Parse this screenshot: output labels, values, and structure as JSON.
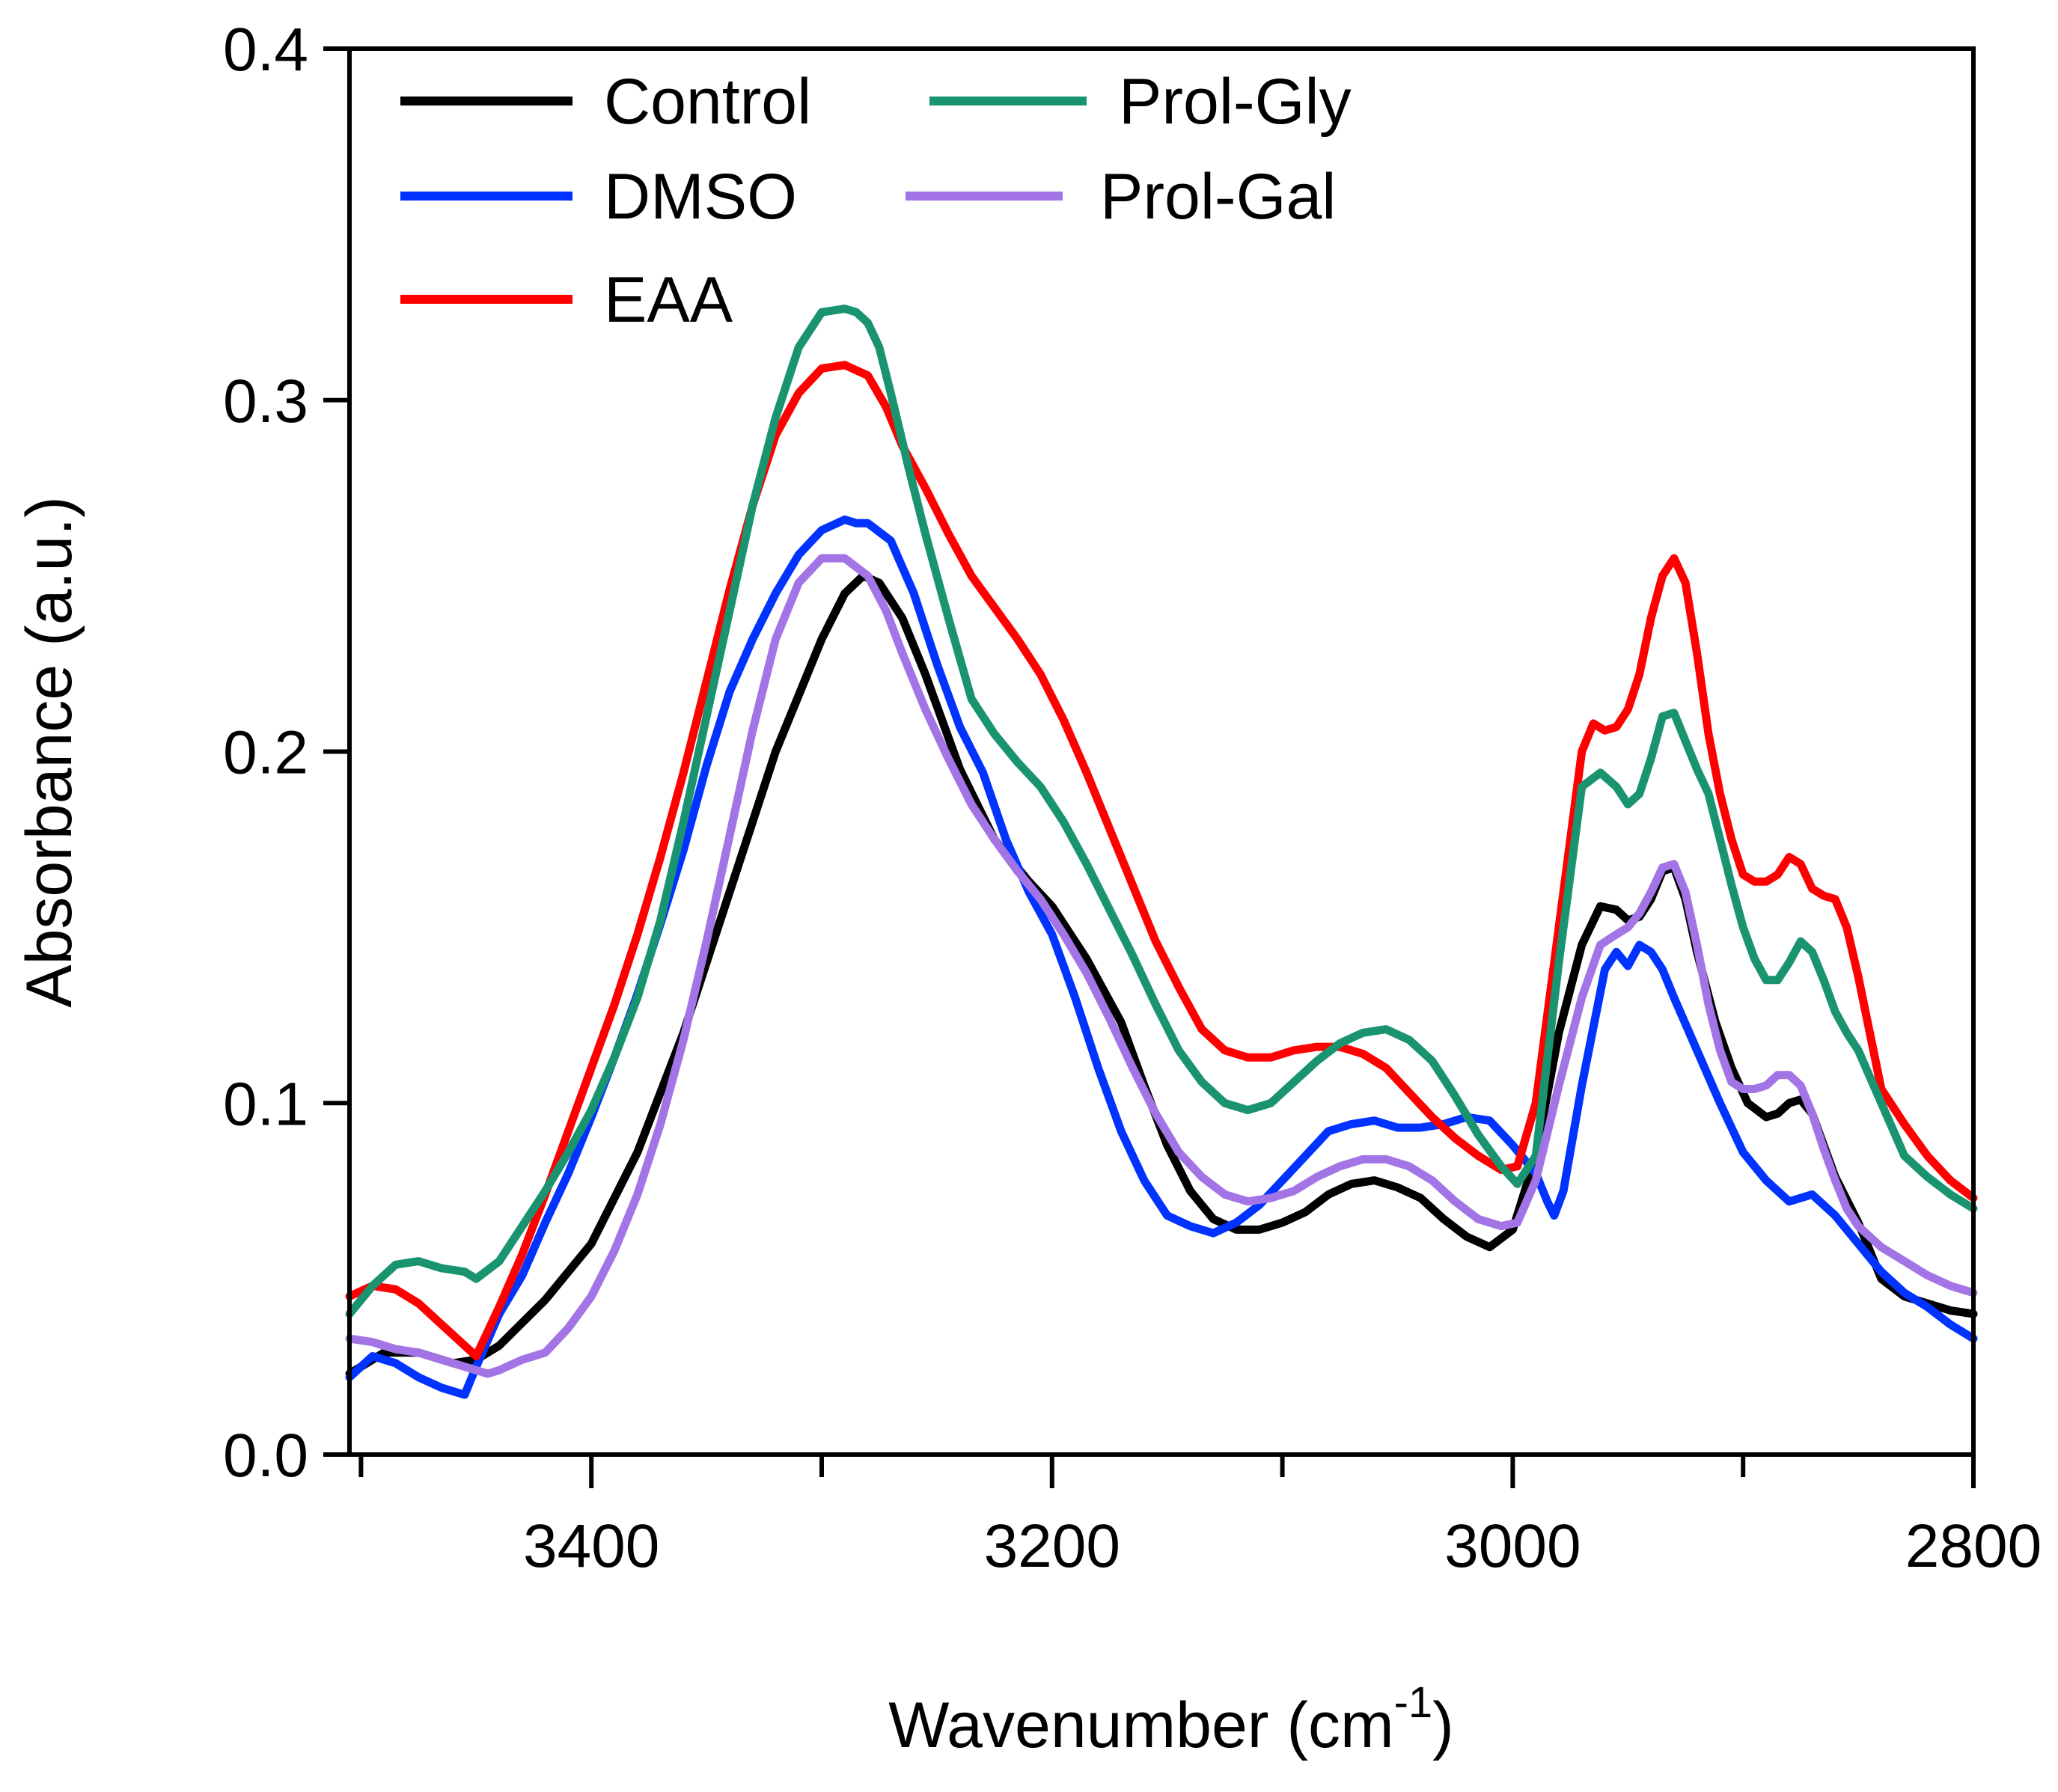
{
  "chart_data": {
    "type": "line",
    "title": "",
    "xlabel": "Wavenumber (cm",
    "xlabel_superscript": "-1",
    "xlabel_suffix": ")",
    "ylabel": "Absorbance (a.u.)",
    "xlim": [
      3505,
      2800
    ],
    "ylim": [
      0.0,
      0.4
    ],
    "x_axis_reversed": true,
    "grid": false,
    "legend_position": "top-left",
    "x_ticks": [
      3400,
      3200,
      3000,
      2800
    ],
    "x_tick_labels": [
      "3400",
      "3200",
      "3000",
      "2800"
    ],
    "x_minor_ticks": [
      3500,
      3300,
      3100,
      2900
    ],
    "y_ticks": [
      0.0,
      0.1,
      0.2,
      0.3,
      0.4
    ],
    "y_tick_labels": [
      "0.0",
      "0.1",
      "0.2",
      "0.3",
      "0.4"
    ],
    "series": [
      {
        "name": "Control",
        "color": "#000000",
        "x": [
          3505,
          3490,
          3475,
          3460,
          3450,
          3440,
          3420,
          3400,
          3380,
          3360,
          3340,
          3320,
          3300,
          3290,
          3282,
          3275,
          3265,
          3255,
          3240,
          3225,
          3210,
          3200,
          3185,
          3170,
          3160,
          3150,
          3140,
          3130,
          3120,
          3110,
          3100,
          3090,
          3080,
          3070,
          3060,
          3050,
          3040,
          3030,
          3020,
          3010,
          3000,
          2990,
          2980,
          2970,
          2962,
          2955,
          2950,
          2945,
          2940,
          2935,
          2930,
          2925,
          2920,
          2912,
          2905,
          2898,
          2890,
          2885,
          2880,
          2875,
          2870,
          2865,
          2860,
          2850,
          2840,
          2830,
          2820,
          2810,
          2800
        ],
        "y": [
          0.023,
          0.029,
          0.029,
          0.026,
          0.027,
          0.031,
          0.044,
          0.06,
          0.086,
          0.12,
          0.16,
          0.2,
          0.232,
          0.245,
          0.25,
          0.248,
          0.238,
          0.222,
          0.195,
          0.175,
          0.163,
          0.156,
          0.141,
          0.123,
          0.105,
          0.088,
          0.075,
          0.067,
          0.064,
          0.064,
          0.066,
          0.069,
          0.074,
          0.077,
          0.078,
          0.076,
          0.073,
          0.067,
          0.062,
          0.059,
          0.064,
          0.085,
          0.12,
          0.145,
          0.156,
          0.155,
          0.152,
          0.153,
          0.158,
          0.166,
          0.167,
          0.158,
          0.143,
          0.123,
          0.11,
          0.1,
          0.096,
          0.097,
          0.1,
          0.101,
          0.097,
          0.088,
          0.079,
          0.066,
          0.05,
          0.045,
          0.043,
          0.041,
          0.04
        ]
      },
      {
        "name": "DMSO",
        "color": "#0033ff",
        "x": [
          3505,
          3495,
          3485,
          3475,
          3465,
          3455,
          3450,
          3440,
          3430,
          3420,
          3410,
          3400,
          3390,
          3380,
          3370,
          3360,
          3350,
          3340,
          3330,
          3320,
          3310,
          3300,
          3290,
          3285,
          3280,
          3270,
          3260,
          3250,
          3240,
          3230,
          3220,
          3210,
          3200,
          3190,
          3180,
          3170,
          3160,
          3150,
          3140,
          3130,
          3120,
          3110,
          3100,
          3090,
          3080,
          3070,
          3060,
          3050,
          3040,
          3030,
          3020,
          3010,
          3000,
          2990,
          2985,
          2982,
          2978,
          2970,
          2960,
          2955,
          2950,
          2945,
          2940,
          2935,
          2930,
          2920,
          2910,
          2900,
          2890,
          2880,
          2870,
          2860,
          2850,
          2840,
          2830,
          2820,
          2810,
          2800
        ],
        "y": [
          0.022,
          0.028,
          0.026,
          0.022,
          0.019,
          0.017,
          0.025,
          0.04,
          0.051,
          0.066,
          0.08,
          0.096,
          0.113,
          0.131,
          0.151,
          0.172,
          0.196,
          0.217,
          0.232,
          0.245,
          0.256,
          0.263,
          0.266,
          0.265,
          0.265,
          0.26,
          0.245,
          0.225,
          0.207,
          0.194,
          0.175,
          0.16,
          0.148,
          0.13,
          0.11,
          0.092,
          0.078,
          0.068,
          0.065,
          0.063,
          0.066,
          0.071,
          0.078,
          0.085,
          0.092,
          0.094,
          0.095,
          0.093,
          0.093,
          0.094,
          0.096,
          0.095,
          0.088,
          0.08,
          0.072,
          0.068,
          0.075,
          0.105,
          0.138,
          0.143,
          0.139,
          0.145,
          0.143,
          0.138,
          0.13,
          0.115,
          0.1,
          0.086,
          0.078,
          0.072,
          0.074,
          0.068,
          0.06,
          0.052,
          0.046,
          0.042,
          0.037,
          0.033
        ]
      },
      {
        "name": "EAA",
        "color": "#ff0000",
        "x": [
          3505,
          3495,
          3485,
          3475,
          3465,
          3455,
          3450,
          3440,
          3430,
          3420,
          3410,
          3400,
          3390,
          3380,
          3370,
          3360,
          3350,
          3340,
          3330,
          3320,
          3310,
          3300,
          3290,
          3280,
          3272,
          3265,
          3255,
          3245,
          3235,
          3225,
          3215,
          3205,
          3195,
          3185,
          3175,
          3165,
          3155,
          3145,
          3135,
          3125,
          3115,
          3105,
          3095,
          3085,
          3075,
          3065,
          3055,
          3045,
          3035,
          3025,
          3015,
          3005,
          2998,
          2990,
          2980,
          2970,
          2965,
          2960,
          2955,
          2950,
          2945,
          2940,
          2935,
          2930,
          2925,
          2920,
          2915,
          2910,
          2905,
          2900,
          2895,
          2890,
          2885,
          2880,
          2875,
          2870,
          2865,
          2860,
          2855,
          2850,
          2845,
          2840,
          2830,
          2820,
          2810,
          2800
        ],
        "y": [
          0.045,
          0.048,
          0.047,
          0.043,
          0.037,
          0.031,
          0.028,
          0.042,
          0.057,
          0.074,
          0.092,
          0.11,
          0.128,
          0.148,
          0.17,
          0.194,
          0.22,
          0.246,
          0.27,
          0.29,
          0.302,
          0.309,
          0.31,
          0.307,
          0.298,
          0.287,
          0.275,
          0.262,
          0.25,
          0.241,
          0.232,
          0.222,
          0.209,
          0.194,
          0.178,
          0.162,
          0.146,
          0.133,
          0.121,
          0.115,
          0.113,
          0.113,
          0.115,
          0.116,
          0.116,
          0.114,
          0.11,
          0.103,
          0.096,
          0.09,
          0.085,
          0.081,
          0.082,
          0.1,
          0.15,
          0.2,
          0.208,
          0.206,
          0.207,
          0.212,
          0.222,
          0.238,
          0.25,
          0.255,
          0.248,
          0.228,
          0.205,
          0.188,
          0.175,
          0.165,
          0.163,
          0.163,
          0.165,
          0.17,
          0.168,
          0.161,
          0.159,
          0.158,
          0.15,
          0.136,
          0.12,
          0.104,
          0.094,
          0.085,
          0.078,
          0.073
        ]
      },
      {
        "name": "Prol-Gly",
        "color": "#1a9470",
        "x": [
          3505,
          3495,
          3485,
          3475,
          3465,
          3455,
          3450,
          3440,
          3430,
          3420,
          3410,
          3400,
          3390,
          3380,
          3370,
          3360,
          3350,
          3340,
          3330,
          3320,
          3310,
          3300,
          3290,
          3285,
          3280,
          3275,
          3270,
          3262,
          3255,
          3245,
          3235,
          3225,
          3215,
          3205,
          3195,
          3185,
          3175,
          3165,
          3155,
          3145,
          3135,
          3125,
          3115,
          3105,
          3095,
          3085,
          3075,
          3065,
          3055,
          3045,
          3035,
          3025,
          3015,
          3005,
          2998,
          2990,
          2980,
          2970,
          2962,
          2955,
          2950,
          2945,
          2940,
          2935,
          2930,
          2925,
          2920,
          2915,
          2910,
          2905,
          2900,
          2895,
          2890,
          2885,
          2880,
          2875,
          2870,
          2865,
          2860,
          2855,
          2850,
          2840,
          2830,
          2820,
          2810,
          2800
        ],
        "y": [
          0.04,
          0.048,
          0.054,
          0.055,
          0.053,
          0.052,
          0.05,
          0.055,
          0.065,
          0.075,
          0.086,
          0.098,
          0.113,
          0.13,
          0.152,
          0.18,
          0.21,
          0.24,
          0.27,
          0.295,
          0.315,
          0.325,
          0.326,
          0.325,
          0.322,
          0.315,
          0.302,
          0.28,
          0.262,
          0.238,
          0.215,
          0.205,
          0.197,
          0.19,
          0.18,
          0.168,
          0.155,
          0.142,
          0.128,
          0.115,
          0.106,
          0.1,
          0.098,
          0.1,
          0.106,
          0.112,
          0.117,
          0.12,
          0.121,
          0.118,
          0.112,
          0.102,
          0.091,
          0.082,
          0.077,
          0.085,
          0.14,
          0.19,
          0.194,
          0.19,
          0.185,
          0.188,
          0.198,
          0.21,
          0.211,
          0.203,
          0.195,
          0.188,
          0.175,
          0.162,
          0.15,
          0.141,
          0.135,
          0.135,
          0.14,
          0.146,
          0.143,
          0.135,
          0.126,
          0.12,
          0.115,
          0.1,
          0.085,
          0.079,
          0.074,
          0.07
        ]
      },
      {
        "name": "Prol-Gal",
        "color": "#a374e6",
        "x": [
          3505,
          3495,
          3485,
          3475,
          3465,
          3455,
          3445,
          3440,
          3430,
          3420,
          3410,
          3400,
          3390,
          3380,
          3370,
          3360,
          3350,
          3340,
          3330,
          3320,
          3310,
          3300,
          3290,
          3280,
          3272,
          3265,
          3255,
          3245,
          3235,
          3225,
          3215,
          3205,
          3195,
          3185,
          3175,
          3165,
          3155,
          3145,
          3135,
          3125,
          3115,
          3105,
          3095,
          3085,
          3075,
          3065,
          3055,
          3045,
          3035,
          3025,
          3015,
          3005,
          2998,
          2990,
          2980,
          2970,
          2962,
          2955,
          2950,
          2945,
          2940,
          2935,
          2930,
          2925,
          2920,
          2915,
          2910,
          2905,
          2900,
          2895,
          2890,
          2885,
          2880,
          2875,
          2870,
          2865,
          2860,
          2855,
          2850,
          2840,
          2830,
          2820,
          2810,
          2800
        ],
        "y": [
          0.033,
          0.032,
          0.03,
          0.029,
          0.027,
          0.025,
          0.023,
          0.024,
          0.027,
          0.029,
          0.036,
          0.045,
          0.058,
          0.074,
          0.094,
          0.118,
          0.146,
          0.176,
          0.206,
          0.232,
          0.248,
          0.255,
          0.255,
          0.25,
          0.24,
          0.228,
          0.212,
          0.198,
          0.185,
          0.175,
          0.166,
          0.158,
          0.148,
          0.137,
          0.124,
          0.11,
          0.097,
          0.086,
          0.079,
          0.074,
          0.072,
          0.073,
          0.075,
          0.079,
          0.082,
          0.084,
          0.084,
          0.082,
          0.078,
          0.072,
          0.067,
          0.065,
          0.066,
          0.078,
          0.105,
          0.13,
          0.145,
          0.148,
          0.15,
          0.154,
          0.16,
          0.167,
          0.168,
          0.16,
          0.145,
          0.128,
          0.115,
          0.106,
          0.104,
          0.104,
          0.105,
          0.108,
          0.108,
          0.105,
          0.097,
          0.087,
          0.078,
          0.07,
          0.065,
          0.059,
          0.055,
          0.051,
          0.048,
          0.046
        ]
      }
    ]
  }
}
